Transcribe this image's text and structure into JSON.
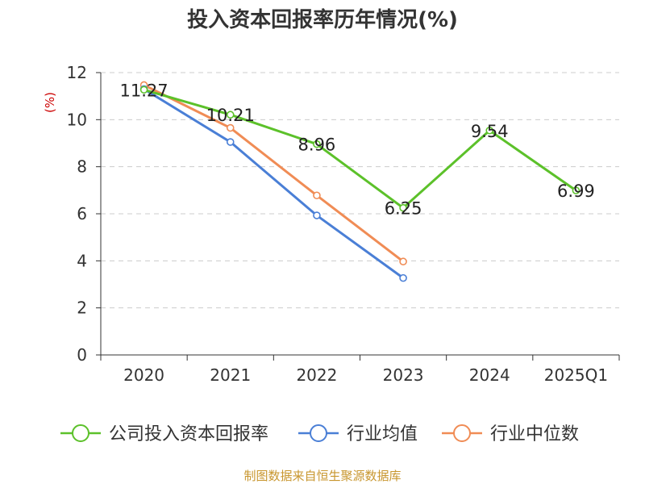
{
  "chart_data": {
    "type": "line",
    "title": "投入资本回报率历年情况(%)",
    "ylabel": "(%)",
    "xlabel": "",
    "categories": [
      "2020",
      "2021",
      "2022",
      "2023",
      "2024",
      "2025Q1"
    ],
    "ylim": [
      0,
      12
    ],
    "yticks": [
      0,
      2,
      4,
      6,
      8,
      10,
      12
    ],
    "grid": true,
    "legend_position": "bottom",
    "series": [
      {
        "name": "公司投入资本回报率",
        "color": "#5cc12a",
        "values": [
          11.27,
          10.21,
          8.96,
          6.25,
          9.54,
          6.99
        ],
        "labels": [
          "11.27",
          "10.21",
          "8.96",
          "6.25",
          "9.54",
          "6.99"
        ]
      },
      {
        "name": "行业均值",
        "color": "#4a7fd6",
        "values": [
          11.3,
          9.05,
          5.93,
          3.27,
          null,
          null
        ]
      },
      {
        "name": "行业中位数",
        "color": "#f08c55",
        "values": [
          11.47,
          9.65,
          6.78,
          3.97,
          null,
          null
        ]
      }
    ]
  },
  "source": "制图数据来自恒生聚源数据库"
}
